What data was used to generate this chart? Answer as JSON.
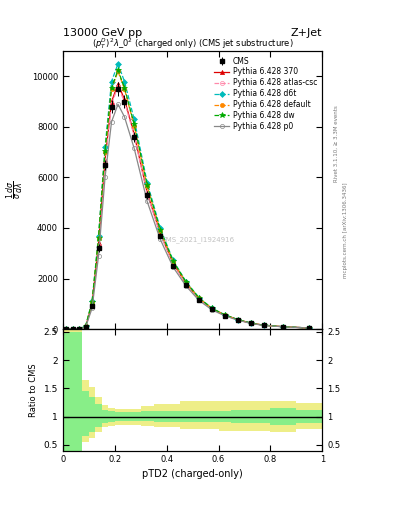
{
  "title_top_left": "13000 GeV pp",
  "title_top_right": "Z+Jet",
  "plot_title": "$(p_T^D)^2\\lambda\\_0^2$ (charged only) (CMS jet substructure)",
  "xlabel": "pTD2 (charged-only)",
  "ylabel_main": "$\\frac{1}{\\sigma}\\frac{d\\sigma}{d\\lambda}$",
  "ylabel_ratio": "Ratio to CMS",
  "watermark": "CMS_2021_I1924916",
  "right_label1": "mcplots.cern.ch [arXiv:1306.3436]",
  "right_label2": "Rivet 3.1.10, ≥ 3.3M events",
  "x_bins": [
    0.0,
    0.025,
    0.05,
    0.075,
    0.1,
    0.125,
    0.15,
    0.175,
    0.2,
    0.225,
    0.25,
    0.3,
    0.35,
    0.4,
    0.45,
    0.5,
    0.55,
    0.6,
    0.65,
    0.7,
    0.75,
    0.8,
    0.9,
    1.0
  ],
  "cms_data": [
    0.5,
    0.5,
    1.0,
    80,
    900,
    3200,
    6500,
    8800,
    9500,
    9000,
    7600,
    5300,
    3700,
    2500,
    1750,
    1150,
    780,
    530,
    355,
    220,
    145,
    88,
    38
  ],
  "cms_errors": [
    0.2,
    0.2,
    0.5,
    15,
    80,
    150,
    200,
    250,
    270,
    250,
    210,
    145,
    100,
    70,
    50,
    32,
    22,
    16,
    11,
    7,
    5,
    3,
    2
  ],
  "py6_370": [
    0.5,
    0.5,
    1.5,
    90,
    980,
    3400,
    6700,
    9000,
    9700,
    9100,
    7700,
    5400,
    3800,
    2600,
    1800,
    1200,
    800,
    550,
    368,
    230,
    150,
    90,
    40
  ],
  "py6_atlas_csc": [
    0.5,
    0.5,
    1.5,
    85,
    950,
    3300,
    6600,
    8900,
    9600,
    9000,
    7650,
    5350,
    3750,
    2580,
    1780,
    1185,
    790,
    542,
    362,
    228,
    148,
    89,
    40
  ],
  "py6_d6t": [
    0.5,
    0.5,
    2.0,
    110,
    1100,
    3700,
    7200,
    9800,
    10500,
    9800,
    8300,
    5800,
    4000,
    2720,
    1870,
    1240,
    820,
    560,
    372,
    234,
    151,
    91,
    41
  ],
  "py6_default": [
    0.5,
    0.5,
    1.8,
    100,
    1050,
    3600,
    7000,
    9500,
    10200,
    9500,
    8050,
    5650,
    3900,
    2670,
    1840,
    1220,
    810,
    555,
    370,
    232,
    150,
    90,
    40
  ],
  "py6_dw": [
    0.5,
    0.5,
    1.8,
    105,
    1060,
    3620,
    7050,
    9550,
    10250,
    9550,
    8100,
    5700,
    3930,
    2690,
    1855,
    1230,
    815,
    558,
    372,
    234,
    151,
    91,
    41
  ],
  "py6_p0": [
    0.5,
    0.5,
    1.0,
    70,
    820,
    2900,
    6000,
    8200,
    8900,
    8400,
    7150,
    5050,
    3560,
    2450,
    1700,
    1130,
    755,
    520,
    348,
    220,
    143,
    87,
    39
  ],
  "ratio_green_lo": [
    0.4,
    0.4,
    0.4,
    0.65,
    0.72,
    0.82,
    0.88,
    0.9,
    0.92,
    0.92,
    0.92,
    0.92,
    0.9,
    0.9,
    0.9,
    0.9,
    0.9,
    0.9,
    0.88,
    0.88,
    0.88,
    0.85,
    0.88
  ],
  "ratio_green_hi": [
    2.5,
    2.5,
    2.5,
    1.45,
    1.35,
    1.22,
    1.12,
    1.1,
    1.08,
    1.08,
    1.08,
    1.1,
    1.1,
    1.1,
    1.1,
    1.1,
    1.1,
    1.1,
    1.12,
    1.12,
    1.12,
    1.15,
    1.12
  ],
  "ratio_yellow_lo": [
    0.4,
    0.4,
    0.4,
    0.55,
    0.62,
    0.72,
    0.82,
    0.84,
    0.86,
    0.86,
    0.86,
    0.84,
    0.82,
    0.82,
    0.78,
    0.78,
    0.78,
    0.75,
    0.75,
    0.75,
    0.75,
    0.72,
    0.78
  ],
  "ratio_yellow_hi": [
    2.8,
    2.8,
    2.8,
    1.65,
    1.52,
    1.35,
    1.2,
    1.16,
    1.14,
    1.14,
    1.14,
    1.18,
    1.22,
    1.22,
    1.28,
    1.28,
    1.28,
    1.28,
    1.28,
    1.28,
    1.28,
    1.28,
    1.25
  ],
  "colors": {
    "cms": "#000000",
    "py6_370": "#dd0000",
    "py6_atlas_csc": "#ff88aa",
    "py6_d6t": "#00bbbb",
    "py6_default": "#ff8800",
    "py6_dw": "#00aa00",
    "py6_p0": "#888888"
  },
  "ylim_main": [
    0,
    11000
  ],
  "ylim_ratio": [
    0.4,
    2.55
  ],
  "bg_color": "#ffffff",
  "green_color": "#88ee88",
  "yellow_color": "#eeee88",
  "figsize": [
    3.93,
    5.12
  ],
  "dpi": 100
}
